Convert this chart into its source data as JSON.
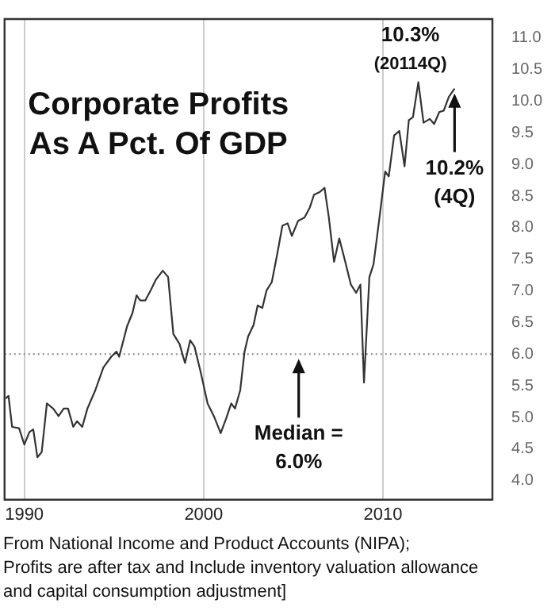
{
  "chart_data": {
    "type": "line",
    "title": "Corporate Profits\nAs A Pct. Of GDP",
    "color": "#333333",
    "marker": "none",
    "grid": "x",
    "xlim": [
      1988.9,
      2016.1
    ],
    "xticks": [
      1990,
      2000,
      2010
    ],
    "ylim": [
      3.7,
      11.3
    ],
    "yticks": [
      {
        "value": 4,
        "label": "4.0"
      },
      {
        "value": 4.5,
        "label": "4.5"
      },
      {
        "value": 5,
        "label": "5.0"
      },
      {
        "value": 5.5,
        "label": "5.5"
      },
      {
        "value": 6,
        "label": "6.0"
      },
      {
        "value": 6.5,
        "label": "6.5"
      },
      {
        "value": 7,
        "label": "7.0"
      },
      {
        "value": 7.5,
        "label": "7.5"
      },
      {
        "value": 8,
        "label": "8.0"
      },
      {
        "value": 8.5,
        "label": "8.5"
      },
      {
        "value": 9,
        "label": "9.0"
      },
      {
        "value": 9.5,
        "label": "9.5"
      },
      {
        "value": 10,
        "label": "10.0"
      },
      {
        "value": 10.5,
        "label": "10.5"
      },
      {
        "value": 11,
        "label": "11.0"
      }
    ],
    "x": [
      1988.97,
      1989.12,
      1989.32,
      1989.71,
      1990.0,
      1990.29,
      1990.5,
      1990.73,
      1990.97,
      1991.26,
      1991.61,
      1991.91,
      1992.2,
      1992.44,
      1992.73,
      1992.94,
      1993.23,
      1993.52,
      1993.96,
      1994.41,
      1994.85,
      1995.14,
      1995.29,
      1995.73,
      1996.03,
      1996.26,
      1996.46,
      1996.75,
      1997.05,
      1997.34,
      1997.72,
      1998.02,
      1998.31,
      1998.66,
      1998.96,
      1999.25,
      1999.49,
      1999.84,
      2000.22,
      2000.57,
      2000.95,
      2001.25,
      2001.54,
      2001.75,
      2002.04,
      2002.28,
      2002.48,
      2002.78,
      2003.01,
      2003.27,
      2003.51,
      2003.8,
      2004.1,
      2004.39,
      2004.68,
      2004.92,
      2005.27,
      2005.62,
      2005.92,
      2006.15,
      2006.45,
      2006.74,
      2006.98,
      2007.27,
      2007.56,
      2007.86,
      2008.21,
      2008.5,
      2008.74,
      2008.94,
      2009.24,
      2009.47,
      2009.82,
      2010.12,
      2010.32,
      2010.62,
      2010.91,
      2011.2,
      2011.44,
      2011.67,
      2011.97,
      2012.26,
      2012.61,
      2012.85,
      2013.14,
      2013.38,
      2013.67,
      2013.99
    ],
    "values": [
      5.3,
      5.34,
      4.85,
      4.83,
      4.57,
      4.77,
      4.81,
      4.37,
      4.45,
      5.22,
      5.14,
      5.02,
      5.14,
      5.14,
      4.85,
      4.94,
      4.85,
      5.14,
      5.43,
      5.79,
      5.96,
      6.04,
      5.96,
      6.44,
      6.65,
      6.93,
      6.85,
      6.85,
      7.01,
      7.18,
      7.32,
      7.22,
      6.32,
      6.16,
      5.86,
      6.22,
      6.12,
      5.71,
      5.22,
      5.02,
      4.75,
      4.98,
      5.22,
      5.14,
      5.43,
      6.04,
      6.28,
      6.46,
      6.77,
      6.73,
      7.01,
      7.14,
      7.58,
      8.03,
      8.07,
      7.87,
      8.11,
      8.16,
      8.32,
      8.52,
      8.56,
      8.63,
      8.16,
      7.46,
      7.83,
      7.5,
      7.1,
      6.97,
      7.1,
      5.55,
      7.22,
      7.42,
      8.2,
      8.89,
      8.81,
      9.46,
      9.53,
      8.97,
      9.7,
      9.75,
      10.3,
      9.66,
      9.72,
      9.64,
      9.83,
      9.85,
      10.07,
      10.2
    ],
    "ref_lines": [
      {
        "axis": "y",
        "value": 6,
        "line_style": "dotted",
        "color": "#888888"
      }
    ],
    "annotations": [
      {
        "text": "10.3%\n(20114Q)",
        "x": 2011.97,
        "y": 10.3
      },
      {
        "text": "10.2%\n(4Q)",
        "x": 2013.99,
        "y": 10.2
      },
      {
        "text": "Median =\n6.0%",
        "x": 2005.3,
        "y": 6
      },
      "From National Income and Product Accounts (NIPA);\nProfits are after tax and Include inventory valuation allowance\nand capital consumption adjustment]"
    ]
  }
}
